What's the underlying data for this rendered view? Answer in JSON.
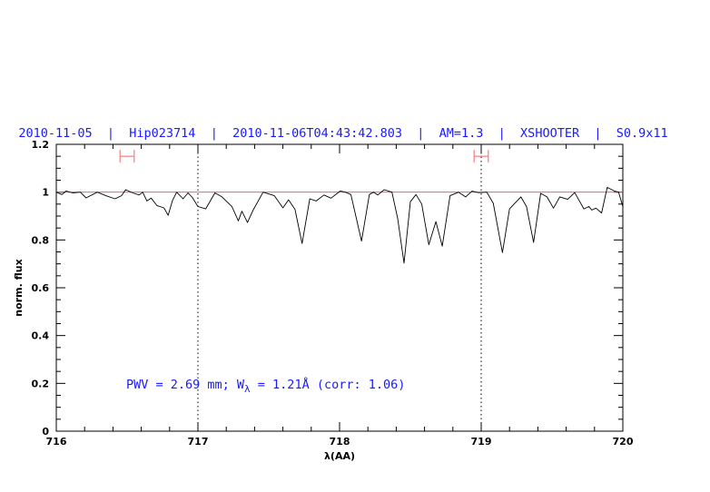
{
  "chart_data": {
    "type": "line",
    "title": "2010-11-05  |  Hip023714  |  2010-11-06T04:43:42.803  |  AM=1.3  |  XSHOOTER  |  S0.9x11",
    "xlabel": "λ(AA)",
    "ylabel": "norm. flux",
    "xlim": [
      716,
      720
    ],
    "ylim": [
      0,
      1.2
    ],
    "x_ticks": [
      "716",
      "717",
      "718",
      "719",
      "720"
    ],
    "y_ticks": [
      "0",
      "0.2",
      "0.4",
      "0.6",
      "0.8",
      "1",
      "1.2"
    ],
    "grid": false,
    "continuum_level": 1.0,
    "vertical_markers": [
      717,
      719
    ],
    "ranges": [
      [
        716.45,
        716.55
      ],
      [
        718.95,
        719.05
      ]
    ],
    "annotation": {
      "pre": "PWV = 2.69 mm; W",
      "sub": "λ",
      "post": " = 1.21Å (corr: 1.06)"
    },
    "colors": {
      "title": "#1a1aff",
      "spectrum": "#000000",
      "continuum": "#e05050",
      "ranges": "#f08080",
      "annotation": "#1a1aff"
    },
    "series": [
      {
        "x": [
          716.0,
          716.04,
          716.07,
          716.115,
          716.17,
          716.21,
          716.29,
          716.35,
          716.415,
          716.46,
          716.49,
          716.54,
          716.585,
          716.61,
          716.64,
          716.67,
          716.71,
          716.76,
          716.79,
          716.82,
          716.85,
          716.895,
          716.93,
          716.96,
          717.0,
          717.055,
          717.12,
          717.17,
          717.24,
          717.285,
          717.31,
          717.35,
          717.39,
          717.46,
          717.54,
          717.6,
          717.64,
          717.685,
          717.735,
          717.79,
          717.835,
          717.89,
          717.94,
          718.005,
          718.04,
          718.08,
          718.115,
          718.155,
          718.21,
          718.24,
          718.27,
          718.315,
          718.37,
          718.41,
          718.455,
          718.5,
          718.54,
          718.58,
          718.63,
          718.68,
          718.725,
          718.78,
          718.84,
          718.89,
          718.935,
          718.98,
          719.04,
          719.085,
          719.15,
          719.2,
          719.28,
          719.32,
          719.37,
          719.42,
          719.465,
          719.51,
          719.555,
          719.61,
          719.66,
          719.725,
          719.76,
          719.78,
          719.81,
          719.85,
          719.89,
          719.94,
          719.97,
          720.0
        ],
        "y": [
          1.0,
          0.99,
          1.005,
          0.997,
          1.0,
          0.976,
          1.0,
          0.985,
          0.972,
          0.985,
          1.01,
          0.997,
          0.988,
          1.0,
          0.963,
          0.975,
          0.944,
          0.934,
          0.903,
          0.964,
          1.0,
          0.972,
          0.997,
          0.978,
          0.94,
          0.93,
          0.997,
          0.98,
          0.94,
          0.88,
          0.92,
          0.873,
          0.925,
          1.0,
          0.985,
          0.934,
          0.968,
          0.928,
          0.785,
          0.972,
          0.963,
          0.988,
          0.975,
          1.005,
          1.0,
          0.99,
          0.9,
          0.795,
          0.99,
          1.0,
          0.988,
          1.01,
          1.0,
          0.89,
          0.703,
          0.96,
          0.99,
          0.95,
          0.78,
          0.877,
          0.774,
          0.985,
          1.0,
          0.98,
          1.004,
          0.998,
          1.0,
          0.953,
          0.747,
          0.93,
          0.98,
          0.94,
          0.79,
          0.995,
          0.98,
          0.933,
          0.98,
          0.97,
          0.998,
          0.93,
          0.94,
          0.925,
          0.933,
          0.913,
          1.02,
          1.005,
          1.0,
          0.94
        ]
      }
    ]
  }
}
